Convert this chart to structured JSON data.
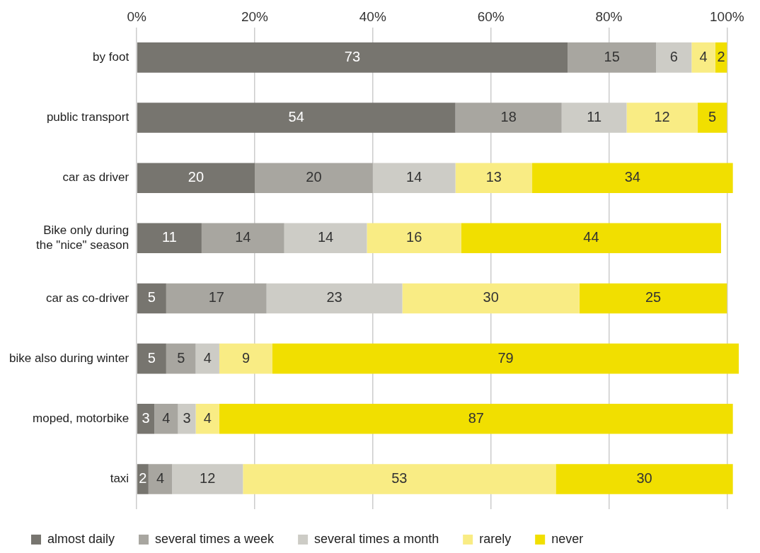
{
  "chart_data": {
    "type": "bar",
    "orientation": "horizontal",
    "stacked": true,
    "data_labels": true,
    "grid": "x",
    "legend": "bottom",
    "categories": [
      "by foot",
      "public transport",
      "car as driver",
      "Bike only during the \"nice\" season",
      "car as co-driver",
      "bike also during winter",
      "moped, motorbike",
      "taxi"
    ],
    "series": [
      {
        "name": "almost daily",
        "color": "#77756f",
        "values": [
          73,
          54,
          20,
          11,
          5,
          5,
          3,
          2
        ]
      },
      {
        "name": "several times a week",
        "color": "#a8a6a0",
        "values": [
          15,
          18,
          20,
          14,
          17,
          5,
          4,
          4
        ]
      },
      {
        "name": "several times a month",
        "color": "#cdccc6",
        "values": [
          6,
          11,
          14,
          14,
          23,
          4,
          3,
          12
        ]
      },
      {
        "name": "rarely",
        "color": "#f9ec84",
        "values": [
          4,
          12,
          13,
          16,
          30,
          9,
          4,
          53
        ]
      },
      {
        "name": "never",
        "color": "#f1df00",
        "values": [
          2,
          5,
          34,
          44,
          25,
          79,
          87,
          30
        ]
      }
    ],
    "xlim": [
      0,
      102
    ],
    "xticks": [
      {
        "value": 0,
        "label": "0%"
      },
      {
        "value": 20,
        "label": "20%"
      },
      {
        "value": 40,
        "label": "40%"
      },
      {
        "value": 60,
        "label": "60%"
      },
      {
        "value": 80,
        "label": "80%"
      },
      {
        "value": 100,
        "label": "100%"
      }
    ]
  }
}
